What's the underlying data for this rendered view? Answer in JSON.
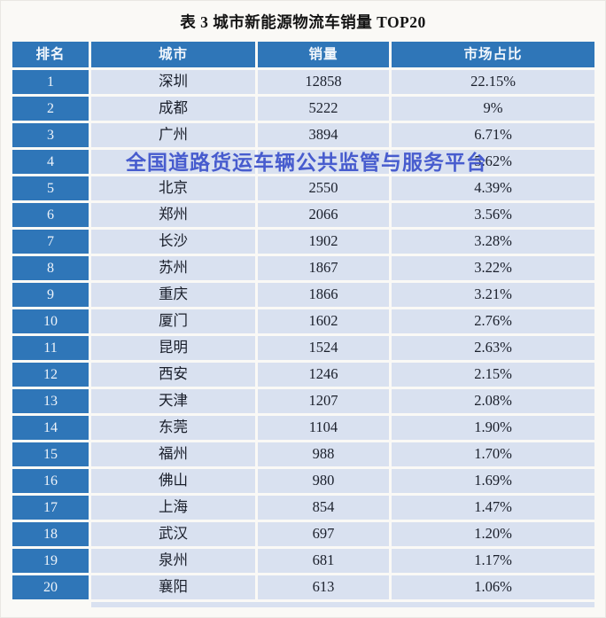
{
  "page": {
    "title": "表 3 城市新能源物流车销量 TOP20"
  },
  "watermark": {
    "text": "全国道路货运车辆公共监管与服务平台",
    "color": "#3D52CC"
  },
  "colors": {
    "header_bg": "#2F76B8",
    "rank_column_bg": "#2F76B8",
    "data_cell_bg": "#D9E1F0",
    "header_text": "#F2F7FC",
    "data_text": "#1A1F2B",
    "watermark_blue": "#3D52CC"
  },
  "table": {
    "headers": [
      "排名",
      "城市",
      "销量",
      "市场占比"
    ],
    "rows": [
      {
        "rank": "1",
        "city": "深圳",
        "sales": "12858",
        "share": "22.15%"
      },
      {
        "rank": "2",
        "city": "成都",
        "sales": "5222",
        "share": "9%"
      },
      {
        "rank": "3",
        "city": "广州",
        "sales": "3894",
        "share": "6.71%"
      },
      {
        "rank": "4",
        "city": "",
        "sales": "",
        "share": "5.62%"
      },
      {
        "rank": "5",
        "city": "北京",
        "sales": "2550",
        "share": "4.39%"
      },
      {
        "rank": "6",
        "city": "郑州",
        "sales": "2066",
        "share": "3.56%"
      },
      {
        "rank": "7",
        "city": "长沙",
        "sales": "1902",
        "share": "3.28%"
      },
      {
        "rank": "8",
        "city": "苏州",
        "sales": "1867",
        "share": "3.22%"
      },
      {
        "rank": "9",
        "city": "重庆",
        "sales": "1866",
        "share": "3.21%"
      },
      {
        "rank": "10",
        "city": "厦门",
        "sales": "1602",
        "share": "2.76%"
      },
      {
        "rank": "11",
        "city": "昆明",
        "sales": "1524",
        "share": "2.63%"
      },
      {
        "rank": "12",
        "city": "西安",
        "sales": "1246",
        "share": "2.15%"
      },
      {
        "rank": "13",
        "city": "天津",
        "sales": "1207",
        "share": "2.08%"
      },
      {
        "rank": "14",
        "city": "东莞",
        "sales": "1104",
        "share": "1.90%"
      },
      {
        "rank": "15",
        "city": "福州",
        "sales": "988",
        "share": "1.70%"
      },
      {
        "rank": "16",
        "city": "佛山",
        "sales": "980",
        "share": "1.69%"
      },
      {
        "rank": "17",
        "city": "上海",
        "sales": "854",
        "share": "1.47%"
      },
      {
        "rank": "18",
        "city": "武汉",
        "sales": "697",
        "share": "1.20%"
      },
      {
        "rank": "19",
        "city": "泉州",
        "sales": "681",
        "share": "1.17%"
      },
      {
        "rank": "20",
        "city": "襄阳",
        "sales": "613",
        "share": "1.06%"
      }
    ]
  }
}
